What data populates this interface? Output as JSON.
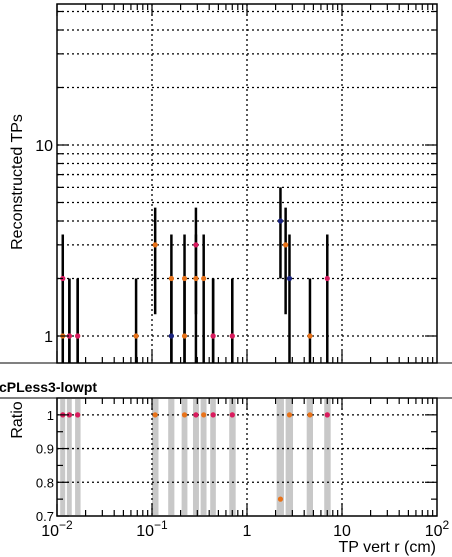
{
  "chart_data": [
    {
      "type": "scatter",
      "panel": "main",
      "xlabel": "TP vert r (cm)",
      "ylabel": "Reconstructed TPs",
      "xscale": "log",
      "yscale": "log",
      "xlim": [
        0.01,
        100
      ],
      "grid": true,
      "x_ticks": [
        {
          "value": 0.01,
          "base": "10",
          "exp": "−2"
        },
        {
          "value": 0.1,
          "base": "10",
          "exp": "−1"
        },
        {
          "value": 1,
          "base": "1",
          "exp": ""
        },
        {
          "value": 10,
          "base": "10",
          "exp": ""
        },
        {
          "value": 100,
          "base": "10",
          "exp": "2"
        }
      ],
      "y_ticks": [
        {
          "value": 1,
          "label": "1"
        },
        {
          "value": 10,
          "label": "10"
        }
      ],
      "series": [
        {
          "marker_color": "#e8731a",
          "points": [
            {
              "x": 0.0115,
              "y": 1,
              "err": 1
            },
            {
              "x": 0.0135,
              "y": 1,
              "err": 1
            },
            {
              "x": 0.0165,
              "y": 1,
              "err": 1
            },
            {
              "x": 0.068,
              "y": 1,
              "err": 1
            },
            {
              "x": 0.108,
              "y": 3,
              "err": 1.7
            },
            {
              "x": 0.16,
              "y": 2,
              "err": 1.4
            },
            {
              "x": 0.22,
              "y": 2,
              "err": 1.4
            },
            {
              "x": 0.22,
              "y": 1,
              "err": 1
            },
            {
              "x": 0.29,
              "y": 2,
              "err": 1.4
            },
            {
              "x": 0.35,
              "y": 2,
              "err": 1.4
            },
            {
              "x": 0.44,
              "y": 1,
              "err": 1
            },
            {
              "x": 0.7,
              "y": 1,
              "err": 1
            },
            {
              "x": 2.55,
              "y": 3,
              "err": 1.7
            },
            {
              "x": 4.6,
              "y": 1,
              "err": 1
            }
          ]
        },
        {
          "marker_color": "#d81b60",
          "points": [
            {
              "x": 0.0115,
              "y": 2,
              "err": 1.4
            },
            {
              "x": 0.0135,
              "y": 1,
              "err": 1
            },
            {
              "x": 0.0165,
              "y": 1,
              "err": 1
            },
            {
              "x": 0.29,
              "y": 3,
              "err": 1.7
            },
            {
              "x": 0.44,
              "y": 1,
              "err": 1
            },
            {
              "x": 0.7,
              "y": 1,
              "err": 1
            },
            {
              "x": 7.0,
              "y": 2,
              "err": 1.4
            }
          ]
        },
        {
          "marker_color": "#1a237e",
          "points": [
            {
              "x": 0.16,
              "y": 1,
              "err": 1
            },
            {
              "x": 2.25,
              "y": 4,
              "err": 2
            },
            {
              "x": 2.8,
              "y": 2,
              "err": 1.4
            }
          ]
        }
      ]
    },
    {
      "type": "scatter",
      "panel": "ratio",
      "title": "cPLess3-lowpt",
      "ylabel": "Ratio",
      "xscale": "log",
      "xlim": [
        0.01,
        100
      ],
      "ylim": [
        0.7,
        1.05
      ],
      "grid": true,
      "y_ticks": [
        {
          "value": 0.7,
          "label": "0.7"
        },
        {
          "value": 0.8,
          "label": "0.8"
        },
        {
          "value": 0.9,
          "label": "0.9"
        },
        {
          "value": 1.0,
          "label": "1"
        }
      ],
      "bands": [
        {
          "x1": 0.0108,
          "x2": 0.0122
        },
        {
          "x1": 0.0127,
          "x2": 0.0143
        },
        {
          "x1": 0.0155,
          "x2": 0.0177
        },
        {
          "x1": 0.1,
          "x2": 0.117
        },
        {
          "x1": 0.148,
          "x2": 0.172
        },
        {
          "x1": 0.205,
          "x2": 0.236
        },
        {
          "x1": 0.27,
          "x2": 0.312
        },
        {
          "x1": 0.325,
          "x2": 0.375
        },
        {
          "x1": 0.41,
          "x2": 0.47
        },
        {
          "x1": 0.65,
          "x2": 0.76
        },
        {
          "x1": 2.05,
          "x2": 2.45
        },
        {
          "x1": 2.55,
          "x2": 3.05
        },
        {
          "x1": 4.25,
          "x2": 4.95
        },
        {
          "x1": 6.5,
          "x2": 7.6
        }
      ],
      "series": [
        {
          "marker_color": "#e8731a",
          "points": [
            {
              "x": 0.0115,
              "y": 1.0
            },
            {
              "x": 0.0135,
              "y": 1.0
            },
            {
              "x": 0.0165,
              "y": 1.0
            },
            {
              "x": 0.108,
              "y": 1.0
            },
            {
              "x": 0.22,
              "y": 1.0
            },
            {
              "x": 0.29,
              "y": 1.0
            },
            {
              "x": 0.35,
              "y": 1.0
            },
            {
              "x": 0.44,
              "y": 1.0
            },
            {
              "x": 0.7,
              "y": 1.0
            },
            {
              "x": 2.25,
              "y": 0.75
            },
            {
              "x": 2.8,
              "y": 1.0
            },
            {
              "x": 4.6,
              "y": 1.0
            },
            {
              "x": 7.0,
              "y": 1.0
            }
          ]
        },
        {
          "marker_color": "#d81b60",
          "points": [
            {
              "x": 0.0115,
              "y": 1.0
            },
            {
              "x": 0.0135,
              "y": 1.0
            },
            {
              "x": 0.0165,
              "y": 1.0
            },
            {
              "x": 0.29,
              "y": 1.0
            },
            {
              "x": 0.44,
              "y": 1.0
            },
            {
              "x": 0.7,
              "y": 1.0
            },
            {
              "x": 7.0,
              "y": 1.0
            }
          ]
        }
      ]
    }
  ]
}
